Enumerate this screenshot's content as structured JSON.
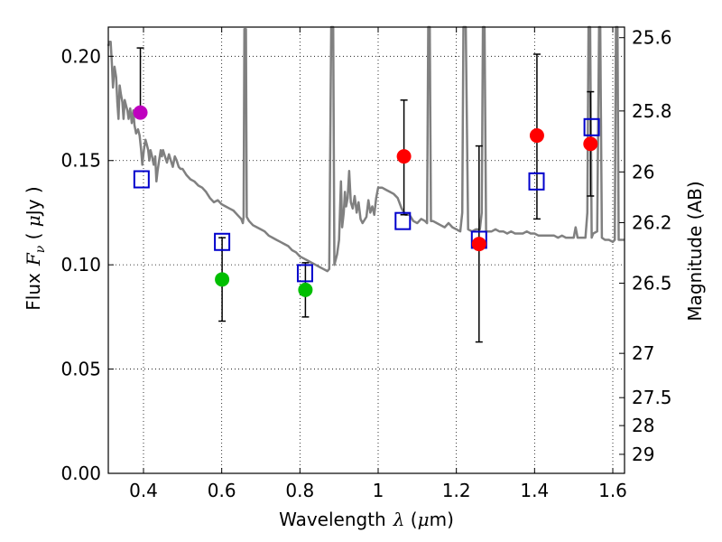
{
  "chart_data": {
    "type": "scatter",
    "xlabel_prefix": "Wavelength",
    "xlabel_symbol": "λ",
    "xlabel_unit_open": " (",
    "xlabel_unit_mu": "μ",
    "xlabel_unit_rest": "m)",
    "ylabel_prefix": "Flux",
    "ylabel_symbol": "F",
    "ylabel_sub": "ν",
    "ylabel_unit_open": " ( ",
    "ylabel_unit_mu": "μ",
    "ylabel_unit_rest": "Jy )",
    "y2label": "Magnitude (AB)",
    "xlim": [
      0.31,
      1.63
    ],
    "ylim": [
      0.0,
      0.214
    ],
    "grid": true,
    "x_ticks": [
      {
        "value": 0.4,
        "label": "0.4"
      },
      {
        "value": 0.6,
        "label": "0.6"
      },
      {
        "value": 0.8,
        "label": "0.8"
      },
      {
        "value": 1.0,
        "label": "1"
      },
      {
        "value": 1.2,
        "label": "1.2"
      },
      {
        "value": 1.4,
        "label": "1.4"
      },
      {
        "value": 1.6,
        "label": "1.6"
      }
    ],
    "y_ticks": [
      {
        "value": 0.0,
        "label": "0.00"
      },
      {
        "value": 0.05,
        "label": "0.05"
      },
      {
        "value": 0.1,
        "label": "0.10"
      },
      {
        "value": 0.15,
        "label": "0.15"
      },
      {
        "value": 0.2,
        "label": "0.20"
      }
    ],
    "mag_ticks": [
      {
        "value": 25.6,
        "label": "25.6"
      },
      {
        "value": 25.8,
        "label": "25.8"
      },
      {
        "value": 26.0,
        "label": "26"
      },
      {
        "value": 26.2,
        "label": "26.2"
      },
      {
        "value": 26.5,
        "label": "26.5"
      },
      {
        "value": 27.0,
        "label": "27"
      },
      {
        "value": 27.5,
        "label": "27.5"
      },
      {
        "value": 28.0,
        "label": "28"
      },
      {
        "value": 29.0,
        "label": "29"
      }
    ],
    "observed": [
      {
        "x": 0.392,
        "y": 0.173,
        "yerr_low": 0.173,
        "yerr_high": 0.204,
        "color": "#bf00bf"
      },
      {
        "x": 0.601,
        "y": 0.093,
        "yerr_low": 0.073,
        "yerr_high": 0.113,
        "color": "#00bf00"
      },
      {
        "x": 0.814,
        "y": 0.088,
        "yerr_low": 0.075,
        "yerr_high": 0.101,
        "color": "#00bf00"
      },
      {
        "x": 1.066,
        "y": 0.152,
        "yerr_low": 0.124,
        "yerr_high": 0.179,
        "color": "#ff0000"
      },
      {
        "x": 1.258,
        "y": 0.11,
        "yerr_low": 0.063,
        "yerr_high": 0.157,
        "color": "#ff0000"
      },
      {
        "x": 1.406,
        "y": 0.162,
        "yerr_low": 0.122,
        "yerr_high": 0.201,
        "color": "#ff0000"
      },
      {
        "x": 1.543,
        "y": 0.158,
        "yerr_low": 0.133,
        "yerr_high": 0.183,
        "color": "#ff0000"
      }
    ],
    "model_bands": [
      {
        "x": 0.395,
        "y": 0.141
      },
      {
        "x": 0.601,
        "y": 0.111
      },
      {
        "x": 0.813,
        "y": 0.096
      },
      {
        "x": 1.063,
        "y": 0.121
      },
      {
        "x": 1.258,
        "y": 0.112
      },
      {
        "x": 1.405,
        "y": 0.14
      },
      {
        "x": 1.546,
        "y": 0.166
      }
    ],
    "spectrum": [
      [
        0.31,
        0.205
      ],
      [
        0.313,
        0.207
      ],
      [
        0.316,
        0.207
      ],
      [
        0.319,
        0.197
      ],
      [
        0.322,
        0.185
      ],
      [
        0.326,
        0.195
      ],
      [
        0.33,
        0.19
      ],
      [
        0.333,
        0.178
      ],
      [
        0.336,
        0.17
      ],
      [
        0.339,
        0.186
      ],
      [
        0.342,
        0.182
      ],
      [
        0.346,
        0.178
      ],
      [
        0.349,
        0.17
      ],
      [
        0.352,
        0.179
      ],
      [
        0.356,
        0.176
      ],
      [
        0.359,
        0.174
      ],
      [
        0.362,
        0.17
      ],
      [
        0.366,
        0.175
      ],
      [
        0.37,
        0.168
      ],
      [
        0.374,
        0.174
      ],
      [
        0.377,
        0.167
      ],
      [
        0.381,
        0.163
      ],
      [
        0.386,
        0.165
      ],
      [
        0.39,
        0.162
      ],
      [
        0.394,
        0.155
      ],
      [
        0.397,
        0.148
      ],
      [
        0.401,
        0.155
      ],
      [
        0.405,
        0.16
      ],
      [
        0.408,
        0.158
      ],
      [
        0.412,
        0.155
      ],
      [
        0.415,
        0.15
      ],
      [
        0.418,
        0.155
      ],
      [
        0.422,
        0.152
      ],
      [
        0.426,
        0.148
      ],
      [
        0.43,
        0.152
      ],
      [
        0.433,
        0.14
      ],
      [
        0.436,
        0.145
      ],
      [
        0.44,
        0.15
      ],
      [
        0.444,
        0.155
      ],
      [
        0.447,
        0.152
      ],
      [
        0.45,
        0.155
      ],
      [
        0.455,
        0.152
      ],
      [
        0.46,
        0.149
      ],
      [
        0.465,
        0.153
      ],
      [
        0.47,
        0.15
      ],
      [
        0.475,
        0.147
      ],
      [
        0.48,
        0.152
      ],
      [
        0.485,
        0.15
      ],
      [
        0.49,
        0.147
      ],
      [
        0.495,
        0.146
      ],
      [
        0.5,
        0.146
      ],
      [
        0.51,
        0.143
      ],
      [
        0.52,
        0.141
      ],
      [
        0.53,
        0.14
      ],
      [
        0.54,
        0.138
      ],
      [
        0.55,
        0.137
      ],
      [
        0.56,
        0.135
      ],
      [
        0.57,
        0.132
      ],
      [
        0.58,
        0.13
      ],
      [
        0.59,
        0.131
      ],
      [
        0.6,
        0.129
      ],
      [
        0.61,
        0.128
      ],
      [
        0.62,
        0.127
      ],
      [
        0.63,
        0.126
      ],
      [
        0.64,
        0.124
      ],
      [
        0.65,
        0.122
      ],
      [
        0.654,
        0.12
      ],
      [
        0.656,
        0.123
      ],
      [
        0.658,
        0.213
      ],
      [
        0.662,
        0.213
      ],
      [
        0.664,
        0.123
      ],
      [
        0.67,
        0.121
      ],
      [
        0.68,
        0.119
      ],
      [
        0.69,
        0.118
      ],
      [
        0.7,
        0.117
      ],
      [
        0.71,
        0.116
      ],
      [
        0.72,
        0.114
      ],
      [
        0.73,
        0.113
      ],
      [
        0.74,
        0.112
      ],
      [
        0.75,
        0.111
      ],
      [
        0.76,
        0.11
      ],
      [
        0.77,
        0.109
      ],
      [
        0.78,
        0.107
      ],
      [
        0.79,
        0.106
      ],
      [
        0.8,
        0.104
      ],
      [
        0.81,
        0.103
      ],
      [
        0.82,
        0.102
      ],
      [
        0.83,
        0.101
      ],
      [
        0.84,
        0.1
      ],
      [
        0.85,
        0.099
      ],
      [
        0.86,
        0.098
      ],
      [
        0.87,
        0.097
      ],
      [
        0.875,
        0.098
      ],
      [
        0.88,
        0.215
      ],
      [
        0.885,
        0.215
      ],
      [
        0.888,
        0.1
      ],
      [
        0.895,
        0.105
      ],
      [
        0.9,
        0.112
      ],
      [
        0.905,
        0.14
      ],
      [
        0.908,
        0.118
      ],
      [
        0.912,
        0.125
      ],
      [
        0.915,
        0.135
      ],
      [
        0.918,
        0.128
      ],
      [
        0.922,
        0.132
      ],
      [
        0.926,
        0.145
      ],
      [
        0.93,
        0.13
      ],
      [
        0.935,
        0.127
      ],
      [
        0.94,
        0.133
      ],
      [
        0.945,
        0.125
      ],
      [
        0.95,
        0.13
      ],
      [
        0.955,
        0.122
      ],
      [
        0.96,
        0.12
      ],
      [
        0.97,
        0.123
      ],
      [
        0.975,
        0.131
      ],
      [
        0.98,
        0.125
      ],
      [
        0.985,
        0.128
      ],
      [
        0.99,
        0.124
      ],
      [
        0.995,
        0.132
      ],
      [
        1.0,
        0.137
      ],
      [
        1.01,
        0.137
      ],
      [
        1.02,
        0.136
      ],
      [
        1.03,
        0.135
      ],
      [
        1.04,
        0.134
      ],
      [
        1.05,
        0.132
      ],
      [
        1.06,
        0.127
      ],
      [
        1.07,
        0.124
      ],
      [
        1.08,
        0.124
      ],
      [
        1.09,
        0.121
      ],
      [
        1.1,
        0.12
      ],
      [
        1.11,
        0.122
      ],
      [
        1.12,
        0.121
      ],
      [
        1.125,
        0.12
      ],
      [
        1.128,
        0.215
      ],
      [
        1.132,
        0.215
      ],
      [
        1.135,
        0.121
      ],
      [
        1.14,
        0.121
      ],
      [
        1.15,
        0.12
      ],
      [
        1.16,
        0.119
      ],
      [
        1.17,
        0.118
      ],
      [
        1.18,
        0.12
      ],
      [
        1.19,
        0.118
      ],
      [
        1.2,
        0.117
      ],
      [
        1.21,
        0.116
      ],
      [
        1.215,
        0.125
      ],
      [
        1.218,
        0.215
      ],
      [
        1.224,
        0.215
      ],
      [
        1.23,
        0.117
      ],
      [
        1.24,
        0.116
      ],
      [
        1.25,
        0.117
      ],
      [
        1.26,
        0.117
      ],
      [
        1.265,
        0.125
      ],
      [
        1.268,
        0.215
      ],
      [
        1.272,
        0.215
      ],
      [
        1.276,
        0.116
      ],
      [
        1.29,
        0.116
      ],
      [
        1.3,
        0.117
      ],
      [
        1.31,
        0.116
      ],
      [
        1.32,
        0.116
      ],
      [
        1.33,
        0.115
      ],
      [
        1.34,
        0.116
      ],
      [
        1.35,
        0.115
      ],
      [
        1.36,
        0.115
      ],
      [
        1.37,
        0.115
      ],
      [
        1.38,
        0.116
      ],
      [
        1.39,
        0.115
      ],
      [
        1.4,
        0.115
      ],
      [
        1.41,
        0.114
      ],
      [
        1.42,
        0.114
      ],
      [
        1.43,
        0.114
      ],
      [
        1.44,
        0.114
      ],
      [
        1.45,
        0.114
      ],
      [
        1.46,
        0.113
      ],
      [
        1.47,
        0.114
      ],
      [
        1.48,
        0.113
      ],
      [
        1.49,
        0.113
      ],
      [
        1.5,
        0.113
      ],
      [
        1.505,
        0.118
      ],
      [
        1.51,
        0.113
      ],
      [
        1.52,
        0.113
      ],
      [
        1.53,
        0.113
      ],
      [
        1.535,
        0.125
      ],
      [
        1.538,
        0.215
      ],
      [
        1.542,
        0.215
      ],
      [
        1.546,
        0.113
      ],
      [
        1.55,
        0.115
      ],
      [
        1.56,
        0.116
      ],
      [
        1.565,
        0.215
      ],
      [
        1.568,
        0.215
      ],
      [
        1.572,
        0.113
      ],
      [
        1.58,
        0.112
      ],
      [
        1.59,
        0.112
      ],
      [
        1.6,
        0.111
      ],
      [
        1.605,
        0.112
      ],
      [
        1.608,
        0.215
      ],
      [
        1.612,
        0.215
      ],
      [
        1.615,
        0.112
      ],
      [
        1.63,
        0.112
      ]
    ]
  }
}
